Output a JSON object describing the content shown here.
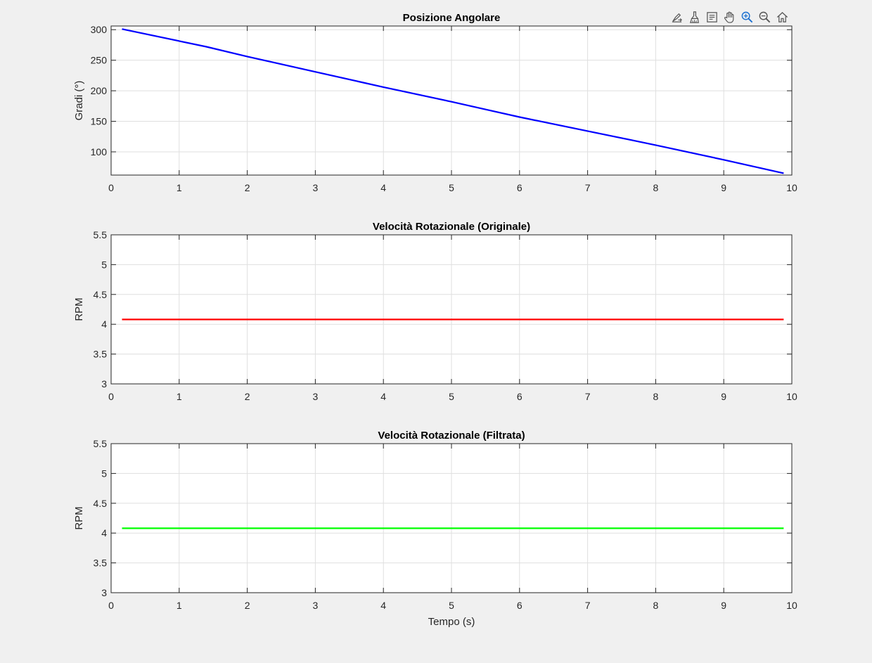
{
  "toolbar": {
    "buttons": [
      {
        "name": "export-icon"
      },
      {
        "name": "brush-icon"
      },
      {
        "name": "datatip-icon"
      },
      {
        "name": "pan-hand-icon"
      },
      {
        "name": "zoom-in-icon"
      },
      {
        "name": "zoom-out-icon"
      },
      {
        "name": "home-icon"
      }
    ]
  },
  "chart_data": [
    {
      "type": "line",
      "title": "Posizione Angolare",
      "xlabel": "",
      "ylabel": "Gradi (°)",
      "xlim": [
        0,
        10
      ],
      "ylim": [
        62,
        306
      ],
      "xticks": [
        0,
        1,
        2,
        3,
        4,
        5,
        6,
        7,
        8,
        9,
        10
      ],
      "yticks": [
        100,
        150,
        200,
        250,
        300
      ],
      "grid": true,
      "series": [
        {
          "color": "#0000ff",
          "x": [
            0.16,
            1.4,
            2.0,
            3.0,
            4.0,
            5.0,
            5.6,
            6.0,
            7.0,
            8.0,
            9.0,
            9.88
          ],
          "y": [
            301,
            272,
            256,
            231,
            206,
            182,
            167,
            157,
            134,
            111,
            87,
            65
          ]
        }
      ]
    },
    {
      "type": "line",
      "title": "Velocità Rotazionale (Originale)",
      "xlabel": "",
      "ylabel": "RPM",
      "xlim": [
        0,
        10
      ],
      "ylim": [
        3,
        5.5
      ],
      "xticks": [
        0,
        1,
        2,
        3,
        4,
        5,
        6,
        7,
        8,
        9,
        10
      ],
      "yticks": [
        3,
        3.5,
        4,
        4.5,
        5,
        5.5
      ],
      "grid": true,
      "series": [
        {
          "color": "#ff0000",
          "x": [
            0.16,
            9.88
          ],
          "y": [
            4.08,
            4.08
          ]
        }
      ]
    },
    {
      "type": "line",
      "title": "Velocità Rotazionale (Filtrata)",
      "xlabel": "Tempo (s)",
      "ylabel": "RPM",
      "xlim": [
        0,
        10
      ],
      "ylim": [
        3,
        5.5
      ],
      "xticks": [
        0,
        1,
        2,
        3,
        4,
        5,
        6,
        7,
        8,
        9,
        10
      ],
      "yticks": [
        3,
        3.5,
        4,
        4.5,
        5,
        5.5
      ],
      "grid": true,
      "series": [
        {
          "color": "#00ff00",
          "x": [
            0.16,
            9.88
          ],
          "y": [
            4.08,
            4.08
          ]
        }
      ]
    }
  ]
}
